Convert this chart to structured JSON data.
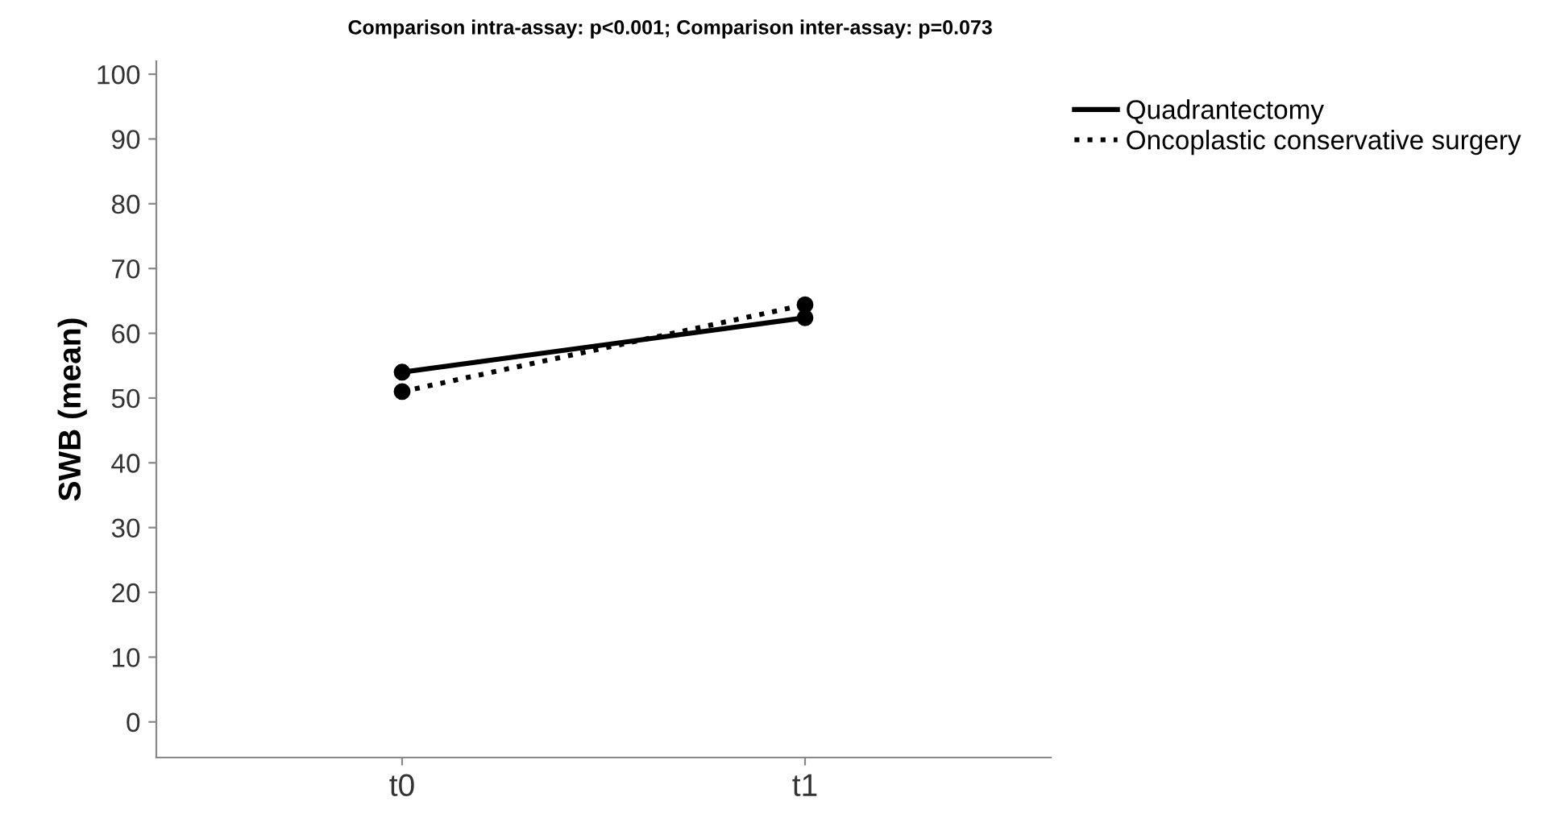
{
  "chart_data": {
    "type": "line",
    "title": "Comparison intra-assay: p<0.001; Comparison inter-assay: p=0.073",
    "ylabel": "SWB (mean)",
    "categories": [
      "t0",
      "t1"
    ],
    "series": [
      {
        "name": "Quadrantectomy",
        "color": "#000000",
        "line_style": "solid",
        "values": [
          54.0,
          62.4
        ]
      },
      {
        "name": "Oncoplastic conservative surgery",
        "color": "#000000",
        "line_style": "dotted",
        "values": [
          51.0,
          64.4
        ]
      }
    ],
    "ylim": [
      -5.5,
      102
    ],
    "yticks": [
      0,
      10,
      20,
      30,
      40,
      50,
      60,
      70,
      80,
      90,
      100
    ],
    "grid": false,
    "legend": "top right",
    "marker": "circle"
  }
}
